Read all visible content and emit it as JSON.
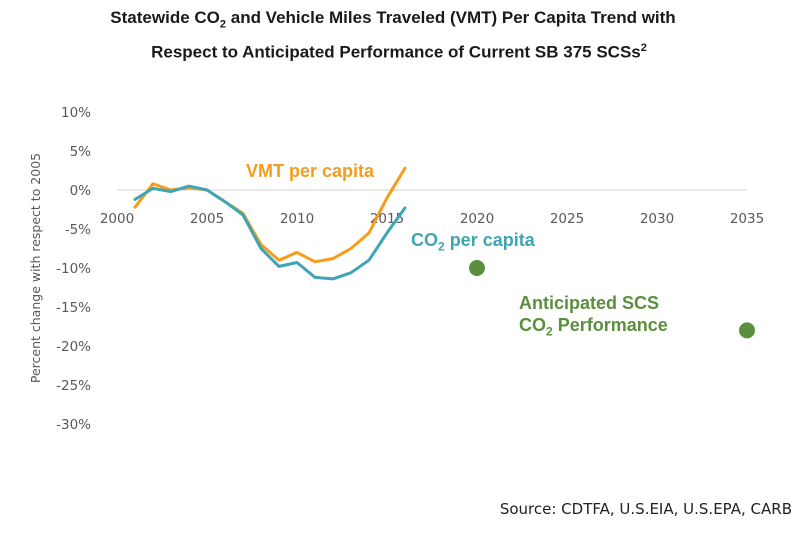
{
  "title": {
    "line1_a": "Statewide CO",
    "line1_sub": "2",
    "line1_b": " and Vehicle Miles Traveled (VMT) Per Capita Trend with",
    "line2": "Respect to Anticipated Performance of Current SB 375 SCSs",
    "line2_sup": "2"
  },
  "source": "Source: CDTFA, U.S.EIA, U.S.EPA, CARB",
  "annotations": {
    "vmt": "VMT per capita",
    "co2_a": "CO",
    "co2_sub": "2",
    "co2_b": " per capita",
    "scs_line1": "Anticipated SCS",
    "scs_line2_a": "CO",
    "scs_line2_sub": "2",
    "scs_line2_b": " Performance"
  },
  "chart_data": {
    "type": "line",
    "ylabel": "Percent change with respect to 2005",
    "xlabel": "",
    "ylim": [
      -30,
      10
    ],
    "xlim": [
      2000,
      2035
    ],
    "yticks": [
      10,
      5,
      0,
      -5,
      -10,
      -15,
      -20,
      -25,
      -30
    ],
    "ytick_labels": [
      "10%",
      "5%",
      "0%",
      "-5%",
      "-10%",
      "-15%",
      "-20%",
      "-25%",
      "-30%"
    ],
    "xticks": [
      2000,
      2005,
      2010,
      2015,
      2020,
      2025,
      2030,
      2035
    ],
    "xtick_labels": [
      "2000",
      "2005",
      "2010",
      "2015",
      "2020",
      "2025",
      "2030",
      "2035"
    ],
    "grid": false,
    "series": [
      {
        "name": "VMT per capita",
        "color": "#f59d1c",
        "x": [
          2001,
          2002,
          2003,
          2004,
          2005,
          2006,
          2007,
          2008,
          2009,
          2010,
          2011,
          2012,
          2013,
          2014,
          2015,
          2016
        ],
        "y": [
          -2.2,
          0.8,
          0.0,
          0.3,
          0.0,
          -1.5,
          -3.0,
          -7.0,
          -9.0,
          -8.0,
          -9.2,
          -8.8,
          -7.5,
          -5.5,
          -1.0,
          2.8
        ]
      },
      {
        "name": "CO2 per capita",
        "color": "#3ea5b5",
        "x": [
          2001,
          2002,
          2003,
          2004,
          2005,
          2006,
          2007,
          2008,
          2009,
          2010,
          2011,
          2012,
          2013,
          2014,
          2015,
          2016
        ],
        "y": [
          -1.2,
          0.2,
          -0.2,
          0.5,
          0.0,
          -1.5,
          -3.2,
          -7.5,
          -9.8,
          -9.3,
          -11.2,
          -11.4,
          -10.6,
          -9.0,
          -5.5,
          -2.3
        ]
      },
      {
        "name": "Anticipated SCS CO2 Performance",
        "color": "#5b8f3d",
        "x": [
          2020,
          2035
        ],
        "y": [
          -10.0,
          -18.0
        ]
      }
    ]
  }
}
